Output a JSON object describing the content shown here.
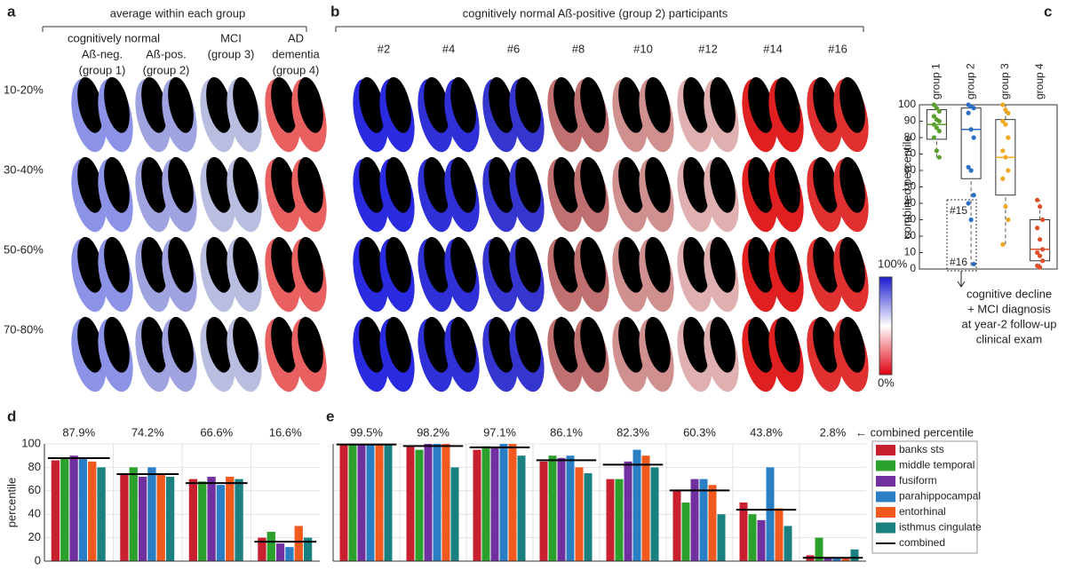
{
  "figure": {
    "panel_a": {
      "label": "a",
      "title": "average within each group",
      "super": "cognitively normal",
      "columns": [
        [
          "Aß-neg.",
          "(group 1)"
        ],
        [
          "Aß-pos.",
          "(group 2)"
        ],
        [
          "MCI",
          "(group 3)"
        ],
        [
          "AD",
          "dementia",
          "(group 4)"
        ]
      ],
      "rows": [
        "10-20%",
        "30-40%",
        "50-60%",
        "70-80%"
      ]
    },
    "panel_b": {
      "label": "b",
      "title": "cognitively normal Aß-positive (group 2) participants",
      "columns": [
        "#2",
        "#4",
        "#6",
        "#8",
        "#10",
        "#12",
        "#14",
        "#16"
      ]
    },
    "colorbar": {
      "top": "100%",
      "bottom": "0%"
    }
  },
  "chart_data": [
    {
      "type": "box",
      "label": "c",
      "ylabel": "combined percentile",
      "categories": [
        "group 1",
        "group 2",
        "group 3",
        "group 4"
      ],
      "colors": [
        "#5aa02c",
        "#2a6fc4",
        "#f0a81e",
        "#e0502a"
      ],
      "ylim": [
        0,
        100
      ],
      "yticks": [
        0,
        10,
        20,
        30,
        40,
        50,
        60,
        70,
        80,
        90,
        100
      ],
      "min": [
        68,
        2,
        15,
        1
      ],
      "q1": [
        79,
        55,
        45,
        5
      ],
      "median": [
        88,
        85,
        68,
        12
      ],
      "q3": [
        97,
        98,
        91,
        30
      ],
      "max": [
        100,
        100,
        100,
        42
      ],
      "points": [
        [
          100,
          98,
          96,
          93,
          91,
          90,
          88,
          86,
          84,
          80,
          72,
          68
        ],
        [
          100,
          99,
          98,
          95,
          85,
          80,
          62,
          60,
          45,
          40,
          30,
          3
        ],
        [
          100,
          97,
          95,
          90,
          88,
          80,
          72,
          68,
          60,
          55,
          38,
          30,
          15
        ],
        [
          42,
          38,
          30,
          25,
          18,
          12,
          10,
          8,
          5,
          2,
          1
        ]
      ],
      "annotations": [
        "#15",
        "#16"
      ],
      "note": [
        "cognitive decline",
        "+ MCI diagnosis",
        "at year-2 follow-up",
        "clinical exam"
      ]
    },
    {
      "type": "bar",
      "label": "d",
      "ylabel": "percentile",
      "ylim": [
        0,
        100
      ],
      "yticks": [
        0,
        20,
        40,
        60,
        80,
        100
      ],
      "series": [
        {
          "color": "#c8202f",
          "values": [
            86,
            75,
            70,
            20
          ]
        },
        {
          "color": "#2ca02c",
          "values": [
            88,
            80,
            68,
            25
          ]
        },
        {
          "color": "#7030a0",
          "values": [
            90,
            72,
            72,
            15
          ]
        },
        {
          "color": "#2a7fc4",
          "values": [
            88,
            80,
            65,
            12
          ]
        },
        {
          "color": "#f05a1e",
          "values": [
            85,
            75,
            72,
            30
          ]
        },
        {
          "color": "#1a8080",
          "values": [
            80,
            72,
            70,
            20
          ]
        }
      ],
      "combined": {
        "values": [
          87.9,
          74.2,
          66.6,
          16.6
        ],
        "value_labels": [
          "87.9%",
          "74.2%",
          "66.6%",
          "16.6%"
        ]
      }
    },
    {
      "type": "bar",
      "label": "e",
      "ylim": [
        0,
        100
      ],
      "yticks": [
        0,
        20,
        40,
        60,
        80,
        100
      ],
      "combined_note": "← combined percentile",
      "series": [
        {
          "name": "banks sts",
          "color": "#c8202f",
          "values": [
            100,
            98,
            95,
            85,
            70,
            60,
            50,
            5
          ]
        },
        {
          "name": "middle temporal",
          "color": "#2ca02c",
          "values": [
            100,
            95,
            98,
            90,
            70,
            50,
            40,
            20
          ]
        },
        {
          "name": "fusiform",
          "color": "#7030a0",
          "values": [
            100,
            100,
            97,
            88,
            85,
            70,
            35,
            3
          ]
        },
        {
          "name": "parahippocampal",
          "color": "#2a7fc4",
          "values": [
            100,
            100,
            100,
            90,
            95,
            70,
            80,
            3
          ]
        },
        {
          "name": "entorhinal",
          "color": "#f05a1e",
          "values": [
            100,
            100,
            100,
            80,
            90,
            65,
            45,
            3
          ]
        },
        {
          "name": "isthmus cingulate",
          "color": "#1a8080",
          "values": [
            100,
            80,
            90,
            75,
            80,
            40,
            30,
            10
          ]
        }
      ],
      "combined": {
        "name": "combined",
        "values": [
          99.5,
          98.2,
          97.1,
          86.1,
          82.3,
          60.3,
          43.8,
          2.8
        ],
        "value_labels": [
          "99.5%",
          "98.2%",
          "97.1%",
          "86.1%",
          "82.3%",
          "60.3%",
          "43.8%",
          "2.8%"
        ]
      }
    }
  ]
}
